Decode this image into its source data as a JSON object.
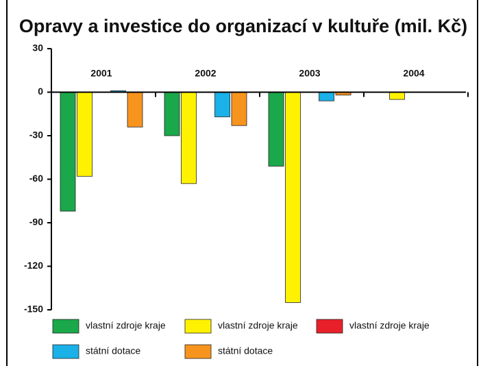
{
  "chart_data": {
    "type": "bar",
    "title": "Opravy a investice do organizací v kultuře (mil. Kč)",
    "categories": [
      "2001",
      "2002",
      "2003",
      "2004"
    ],
    "series": [
      {
        "name": "vlastní zdroje kraje",
        "color": "#1aa84a",
        "values": [
          -82,
          -30,
          -51,
          0
        ]
      },
      {
        "name": "vlastní zdroje kraje",
        "color": "#fff200",
        "values": [
          -58,
          -63,
          -145,
          -5
        ]
      },
      {
        "name": "vlastní zdroje kraje",
        "color": "#e8202a",
        "values": [
          0,
          0,
          0,
          0
        ]
      },
      {
        "name": "státní dotace",
        "color": "#1ab0e8",
        "values": [
          1,
          -17,
          -6,
          0
        ]
      },
      {
        "name": "státní dotace",
        "color": "#f7941d",
        "values": [
          -24,
          -23,
          -2,
          0
        ]
      }
    ],
    "ylim": [
      -150,
      30
    ],
    "yticks": [
      -150,
      -120,
      -90,
      -60,
      -30,
      0,
      30
    ]
  }
}
